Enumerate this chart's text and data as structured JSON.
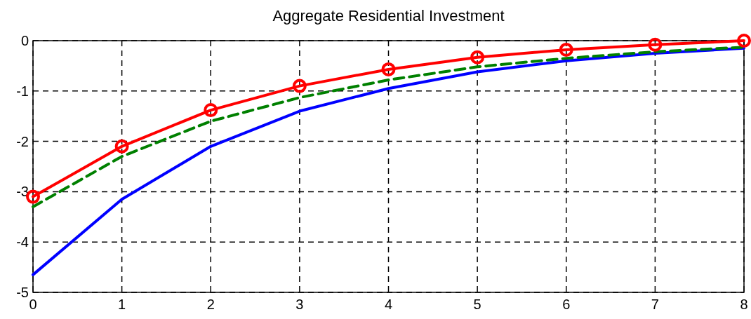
{
  "chart_data": {
    "type": "line",
    "title": "Aggregate Residential Investment",
    "x": [
      0,
      1,
      2,
      3,
      4,
      5,
      6,
      7,
      8
    ],
    "xlim": [
      0,
      8
    ],
    "xticks": [
      0,
      1,
      2,
      3,
      4,
      5,
      6,
      7,
      8
    ],
    "ylim": [
      -5,
      0
    ],
    "yticks": [
      -5,
      -4,
      -3,
      -2,
      -1,
      0
    ],
    "grid": true,
    "series": [
      {
        "color": "#0000ff",
        "line_style": "solid",
        "marker": "none",
        "values": [
          -4.65,
          -3.15,
          -2.1,
          -1.4,
          -0.95,
          -0.62,
          -0.4,
          -0.25,
          -0.15
        ]
      },
      {
        "color": "#008000",
        "line_style": "dashed",
        "marker": "none",
        "values": [
          -3.3,
          -2.3,
          -1.6,
          -1.13,
          -0.78,
          -0.52,
          -0.35,
          -0.22,
          -0.13
        ]
      },
      {
        "color": "#ff0000",
        "line_style": "solid",
        "marker": "circle",
        "values": [
          -3.1,
          -2.1,
          -1.38,
          -0.9,
          -0.57,
          -0.33,
          -0.18,
          -0.08,
          0
        ]
      }
    ]
  }
}
